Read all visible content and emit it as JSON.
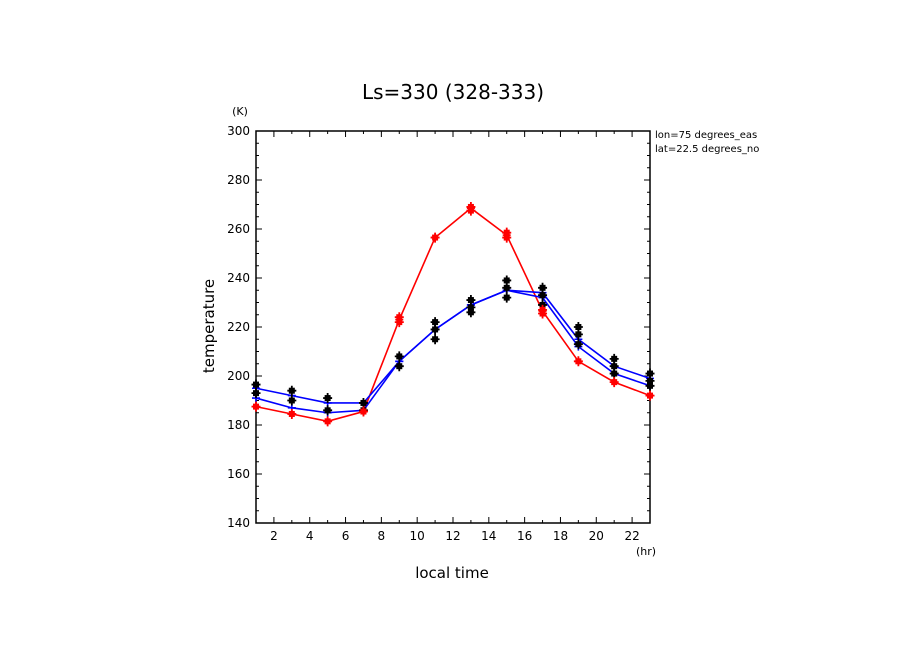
{
  "chart_data": {
    "type": "line",
    "title": "Ls=330 (328-333)",
    "xlabel": "local time",
    "ylabel": "temperature",
    "x_unit": "(hr)",
    "y_unit": "(K)",
    "annotations": [
      "lon=75 degrees_eas",
      "lat=22.5 degrees_no"
    ],
    "xlim": [
      1,
      23
    ],
    "ylim": [
      140,
      300
    ],
    "xticks": [
      2,
      4,
      6,
      8,
      10,
      12,
      14,
      16,
      18,
      20,
      22
    ],
    "yticks": [
      140,
      160,
      180,
      200,
      220,
      240,
      260,
      280,
      300
    ],
    "x": [
      1,
      3,
      5,
      7,
      9,
      11,
      13,
      15,
      17,
      19,
      21,
      23
    ],
    "series": [
      {
        "color": "#ff0000",
        "values": [
          187.5,
          184.5,
          181.5,
          185.5,
          223,
          256.5,
          268.5,
          257.5,
          226.5,
          206,
          197.5,
          192
        ]
      },
      {
        "color": "#0000ff",
        "values": [
          195,
          192,
          189,
          189,
          206,
          219,
          229,
          235,
          234,
          215,
          204,
          199
        ]
      },
      {
        "color": "#0000ff",
        "values": [
          191,
          187,
          185,
          186,
          206,
          219,
          229,
          235,
          232,
          212,
          201,
          196
        ]
      }
    ],
    "markers": {
      "black": [
        [
          1,
          196.5
        ],
        [
          1,
          193
        ],
        [
          3,
          194
        ],
        [
          3,
          190
        ],
        [
          5,
          191
        ],
        [
          5,
          186
        ],
        [
          7,
          189
        ],
        [
          7,
          186
        ],
        [
          9,
          208
        ],
        [
          9,
          204
        ],
        [
          11,
          222
        ],
        [
          11,
          219
        ],
        [
          11,
          215
        ],
        [
          13,
          231
        ],
        [
          13,
          228
        ],
        [
          13,
          226
        ],
        [
          15,
          239
        ],
        [
          15,
          236
        ],
        [
          15,
          232
        ],
        [
          17,
          236
        ],
        [
          17,
          233
        ],
        [
          17,
          229
        ],
        [
          19,
          220
        ],
        [
          19,
          217
        ],
        [
          19,
          213
        ],
        [
          21,
          207
        ],
        [
          21,
          204
        ],
        [
          21,
          201
        ],
        [
          23,
          201
        ],
        [
          23,
          198
        ],
        [
          23,
          196
        ]
      ],
      "red": [
        [
          1,
          187.5
        ],
        [
          3,
          184.5
        ],
        [
          5,
          181.5
        ],
        [
          7,
          185.5
        ],
        [
          9,
          224
        ],
        [
          9,
          222
        ],
        [
          11,
          256.5
        ],
        [
          13,
          269
        ],
        [
          13,
          267.5
        ],
        [
          15,
          258.5
        ],
        [
          15,
          256.5
        ],
        [
          17,
          227
        ],
        [
          17,
          225.5
        ],
        [
          19,
          206
        ],
        [
          21,
          197.5
        ],
        [
          23,
          192
        ]
      ]
    }
  }
}
